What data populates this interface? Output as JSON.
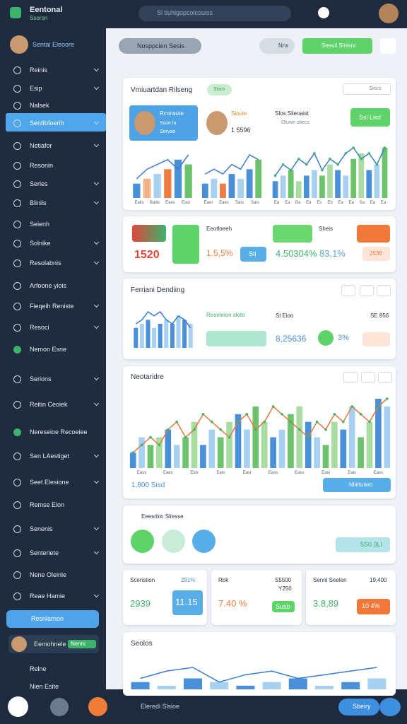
{
  "header": {
    "brand": "Eentonal",
    "brand_sub": "Ssoron",
    "search": "Sl tiuhlgopcolcouiss"
  },
  "sidebar": {
    "user": "Sental Eleoore",
    "items": [
      "Reinis",
      "Esip",
      "Nalsek",
      "Sentfofoerih",
      "Netiafor",
      "Resonin",
      "Serles",
      "Bliniis",
      "Seienh",
      "Solnike",
      "Resolabnis",
      "Arfoone yiois",
      "Fieqeih Reniste",
      "Resoci",
      "Nemon Esne",
      "Serions",
      "Reitin Ceoiek",
      "Nereseioe Recoeiee",
      "Sen LAestiget",
      "Seet Elesione",
      "Remse Elon",
      "Senenis",
      "Senteriete",
      "Nene Oleinle",
      "Reae Hamie"
    ],
    "button": "Resnlarnon",
    "profile": "Eemohnele",
    "profile_badge": "Nenni",
    "bottom_items": [
      "Relne",
      "Nien Esite"
    ]
  },
  "toolbar": {
    "search": "Nosppcien Sesis",
    "pill": "Nnx",
    "button": "Seeuil Slnisnr"
  },
  "overview": {
    "title": "Vmiuartdan Rilseng",
    "badge": "Sisro",
    "tab": "Siisro",
    "profile1": {
      "name": "Rconsute",
      "line1": "Ssoe lu",
      "line2": "Sorvao"
    },
    "profile2": {
      "name": "Sioule",
      "value": "1 5596"
    },
    "profile3": {
      "name": "Slos Sileoaist",
      "sub": "Oluwe sbecs",
      "button": "Ssl Liiol"
    }
  },
  "stats": {
    "big": "1520",
    "box_label": "Eeotloeeh",
    "pct1": "1.5,5%",
    "btn1": "Sti",
    "pct2": "4.50304%",
    "label2": "Sheis",
    "pct3": "83,1%",
    "badge3": "2536"
  },
  "trend": {
    "title": "Ferriani Dendiing",
    "label": "Resvteion sloto",
    "label2": "Sl Eioo",
    "value": "8,25636",
    "pct": "3%",
    "side": "SE 856"
  },
  "main": {
    "title": "Neotaridre",
    "footer": "1,800 Sisd",
    "button": "Nliirtuisro"
  },
  "actions": {
    "title": "Eeesrbin Sliesse",
    "pill": "5S0 3Ll"
  },
  "tiles": [
    {
      "label": "Scenstion",
      "top": "291%",
      "value": "2939",
      "box": "11.15"
    },
    {
      "label": "Rbk",
      "top": "S5500",
      "sub": "Y250",
      "value": "7.40 %",
      "box": "Susb"
    },
    {
      "label": "Sennl Seelen",
      "top": "19,400",
      "value": "3.8,89",
      "box": "10 4%"
    }
  ],
  "bottom": {
    "title": "Seolos",
    "label": "Eleredi Slsioe",
    "button": "Sbeiry"
  },
  "charts": [
    {
      "type": "bar_line",
      "bars": [
        3,
        4,
        5,
        6,
        8,
        7
      ],
      "line": [
        4,
        6,
        7,
        8,
        6,
        9
      ],
      "labels": [
        "Ealis",
        "Ballis",
        "Eaes",
        "Easi"
      ],
      "colors": [
        "#4a90d9",
        "#f5b183",
        "#a8d0f0",
        "#f07c45",
        "#4a90d9",
        "#6cc36c"
      ]
    },
    {
      "type": "bar_line",
      "bars": [
        3,
        4,
        3,
        5,
        4,
        6,
        8
      ],
      "line": [
        5,
        6,
        5,
        7,
        6,
        9,
        8
      ],
      "labels": [
        "Eaer",
        "Eaes",
        "Sats",
        "Sais"
      ],
      "colors": [
        "#4a90d9",
        "#a8d0f0",
        "#f07c45",
        "#4a90d9",
        "#a8d0f0",
        "#4a90d9",
        "#6cc36c"
      ]
    },
    {
      "type": "bar_line",
      "bars": [
        3,
        4,
        5,
        3,
        4,
        5,
        4,
        6,
        5,
        4,
        7,
        8,
        5,
        6,
        9
      ],
      "line": [
        4,
        6,
        5,
        7,
        6,
        8,
        5,
        7,
        6,
        8,
        9,
        7,
        8,
        6,
        9
      ],
      "labels": [
        "Ea",
        "Ea",
        "Ba",
        "Ea",
        "Es",
        "Eb",
        "Ea",
        "Ea",
        "Sa",
        "Ea",
        "Ea"
      ],
      "colors": [
        "#4a90d9",
        "#a8d0f0",
        "#6cc36c",
        "#a9dca0"
      ]
    },
    {
      "type": "bar_line",
      "bars": [
        5,
        6,
        7,
        5,
        6,
        7,
        6,
        8,
        7,
        6
      ],
      "line": [
        6,
        7,
        9,
        8,
        9,
        7,
        6,
        8,
        7,
        5
      ],
      "colors": [
        "#4a90d9",
        "#a8d0f0"
      ]
    },
    {
      "type": "bar_line",
      "bars": [
        2,
        4,
        3,
        4,
        5,
        3,
        4,
        6,
        3,
        5,
        4,
        6,
        7,
        5,
        8,
        6,
        4,
        5,
        7,
        8,
        6,
        4,
        3,
        6,
        5,
        8,
        4,
        6,
        9,
        8
      ],
      "line": [
        2,
        3,
        4,
        3,
        5,
        6,
        4,
        5,
        7,
        6,
        5,
        4,
        6,
        7,
        5,
        6,
        8,
        7,
        6,
        5,
        4,
        6,
        5,
        7,
        6,
        8,
        7,
        6,
        8,
        9
      ],
      "labels": [
        "Eass",
        "Eaes",
        "Esis",
        "Eais",
        "Easi",
        "Eass",
        "Eass",
        "Easi",
        "Eais",
        "Eass"
      ],
      "colors": [
        "#4a90d9",
        "#a8d0f0",
        "#6cc36c",
        "#a9dca0"
      ]
    },
    {
      "type": "bar_line",
      "bars": [
        2,
        1,
        3,
        2,
        1,
        2,
        3,
        1,
        2,
        3
      ],
      "line": [
        3,
        5,
        6,
        2,
        4,
        5,
        3,
        4,
        5,
        6
      ],
      "colors": [
        "#4a90d9",
        "#a8d0f0"
      ]
    }
  ]
}
